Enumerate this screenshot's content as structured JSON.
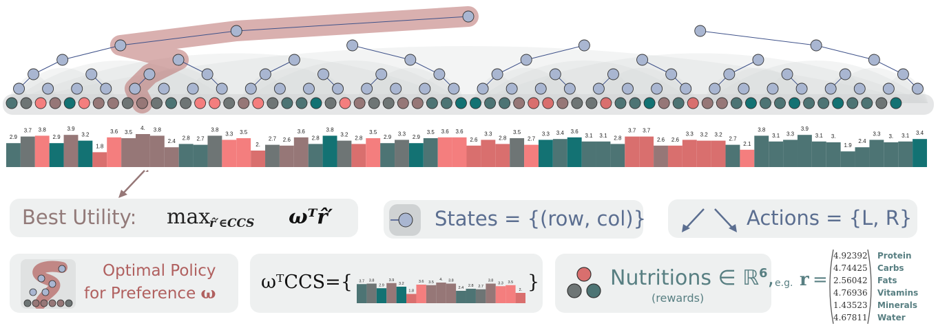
{
  "colors": {
    "state_node": "#a9b6d1",
    "node_halo": "#d4d6d7",
    "path_highlight": "#b9706e",
    "edge": "#3e5189",
    "bar_teal": "#137273",
    "bar_gray": "#6e7575",
    "bar_mauve": "#967777",
    "bar_coral": "#f47e7e",
    "bar_slategreen": "#4d7474",
    "bar_rose": "#d96f6e",
    "panel_bg": "#eef0f0",
    "text_mauve": "#927a79",
    "text_blue": "#5b6e90",
    "text_teal": "#587f82",
    "text_red": "#b0605f"
  },
  "leaf_colors": [
    "slategreen",
    "gray",
    "coral",
    "mauve",
    "teal",
    "coral",
    "mauve",
    "mauve",
    "gray",
    "mauve",
    "gray",
    "slategreen",
    "gray",
    "coral",
    "coral",
    "gray",
    "mauve",
    "coral",
    "gray",
    "slategreen",
    "slategreen",
    "teal",
    "gray",
    "coral",
    "mauve",
    "gray",
    "gray",
    "mauve",
    "mauve",
    "slategreen",
    "slategreen",
    "teal",
    "teal",
    "slategreen",
    "slategreen",
    "mauve",
    "rose",
    "rose",
    "mauve",
    "gray",
    "gray",
    "rose",
    "slategreen",
    "slategreen",
    "teal",
    "mauve",
    "slategreen",
    "rose",
    "mauve",
    "mauve",
    "slategreen",
    "teal",
    "slategreen",
    "slategreen",
    "teal",
    "slategreen",
    "slategreen",
    "teal",
    "slategreen",
    "slategreen",
    "gray",
    "teal"
  ],
  "chart_data": {
    "type": "bar",
    "ylim": [
      0,
      4.5
    ],
    "values": [
      2.9,
      3.7,
      3.8,
      2.9,
      3.9,
      3.2,
      1.8,
      3.6,
      3.5,
      4.0,
      3.8,
      2.4,
      2.8,
      2.7,
      3.8,
      3.3,
      3.5,
      2.0,
      2.7,
      2.6,
      3.6,
      2.8,
      3.8,
      3.2,
      2.8,
      3.5,
      2.9,
      3.3,
      2.9,
      3.5,
      3.6,
      3.6,
      2.6,
      3.3,
      2.8,
      3.5,
      2.7,
      3.3,
      3.4,
      3.6,
      3.1,
      3.1,
      2.8,
      3.7,
      3.7,
      2.6,
      2.6,
      3.3,
      3.2,
      3.2,
      2.7,
      2.1,
      3.8,
      3.1,
      3.3,
      3.9,
      3.1,
      3.0,
      1.9,
      2.4,
      3.3,
      3.0,
      3.1,
      3.4
    ],
    "labels": [
      "2.9",
      "3.7",
      "3.8",
      "2.9",
      "3.9",
      "3.2",
      "1.8",
      "3.6",
      "3.5",
      "4.",
      "3.8",
      "2.4",
      "2.8",
      "2.7",
      "3.8",
      "3.3",
      "3.5",
      "2.",
      "2.7",
      "2.6",
      "3.6",
      "2.8",
      "3.8",
      "3.2",
      "2.8",
      "3.5",
      "2.9",
      "3.3",
      "2.9",
      "3.5",
      "3.6",
      "3.6",
      "2.6",
      "3.3",
      "2.8",
      "3.5",
      "2.7",
      "3.3",
      "3.4",
      "3.6",
      "3.1",
      "3.1",
      "2.8",
      "3.7",
      "3.7",
      "2.6",
      "2.6",
      "3.3",
      "3.2",
      "3.2",
      "2.7",
      "2.1",
      "3.8",
      "3.1",
      "3.3",
      "3.9",
      "3.1",
      "3.",
      "1.9",
      "2.4",
      "3.3",
      "3.",
      "3.1",
      "3.4"
    ],
    "colors": [
      "slategreen",
      "gray",
      "coral",
      "teal",
      "mauve",
      "teal",
      "rose",
      "coral",
      "mauve",
      "mauve",
      "mauve",
      "mauve",
      "slategreen",
      "slategreen",
      "gray",
      "coral",
      "coral",
      "rose",
      "gray",
      "mauve",
      "mauve",
      "slategreen",
      "teal",
      "gray",
      "rose",
      "coral",
      "slategreen",
      "gray",
      "teal",
      "slategreen",
      "coral",
      "coral",
      "rose",
      "rose",
      "rose",
      "gray",
      "coral",
      "teal",
      "slategreen",
      "teal",
      "slategreen",
      "slategreen",
      "slategreen",
      "rose",
      "rose",
      "mauve",
      "rose",
      "rose",
      "rose",
      "rose",
      "slategreen",
      "coral",
      "slategreen",
      "slategreen",
      "slategreen",
      "slategreen",
      "slategreen",
      "slategreen",
      "slategreen",
      "slategreen",
      "slategreen",
      "slategreen",
      "slategreen",
      "teal"
    ]
  },
  "mini_chart": {
    "values": [
      3.7,
      3.8,
      2.9,
      3.9,
      3.2,
      1.8,
      3.6,
      3.5,
      4.0,
      3.8,
      2.4,
      2.8,
      2.7,
      3.8,
      3.3,
      3.5,
      2.0
    ],
    "labels": [
      "3.7",
      "3.8",
      "2.9",
      "3.9",
      "3.2",
      "1.8",
      "3.6",
      "3.5",
      "4.",
      "3.8",
      "2.4",
      "2.8",
      "2.7",
      "3.8",
      "3.3",
      "3.5",
      "2."
    ],
    "colors": [
      "slategreen",
      "gray",
      "teal",
      "mauve",
      "teal",
      "rose",
      "coral",
      "mauve",
      "mauve",
      "mauve",
      "slategreen",
      "slategreen",
      "gray",
      "mauve",
      "coral",
      "coral",
      "rose"
    ]
  },
  "panels": {
    "best_utility": {
      "label": "Best Utility:",
      "formula": "max",
      "subscript": "r̂′∈CCS",
      "formula_tail": "ωᵀr̂′"
    },
    "states": {
      "text": "States = {(row, col)}"
    },
    "actions": {
      "text": "Actions = {L, R}"
    },
    "optimal_policy": {
      "line1": "Optimal Policy",
      "line2": "for Preference ",
      "omega": "ω"
    },
    "wccs": {
      "prefix": "ωᵀCCS={",
      "suffix": "}"
    },
    "nutritions": {
      "text": "Nutritions ∈ ℝ",
      "exp": "6",
      "comma": ",",
      "rewards": "(rewards)",
      "eg": "e.g.",
      "r": "r",
      "eq": "="
    },
    "vector": {
      "values": [
        "4.92392",
        "4.74425",
        "2.56042",
        "4.76936",
        "1.43523",
        "4.67811"
      ],
      "names": [
        "Protein",
        "Carbs",
        "Fats",
        "Vitamins",
        "Minerals",
        "Water"
      ]
    }
  }
}
